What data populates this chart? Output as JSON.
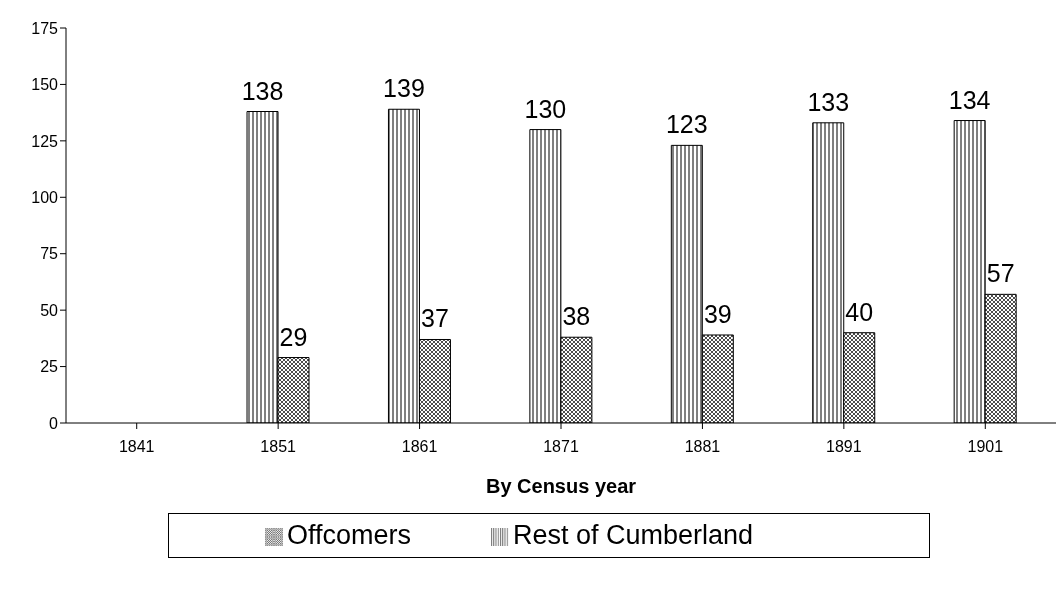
{
  "chart_data": {
    "type": "bar",
    "xlabel": "By Census year",
    "categories": [
      "1841",
      "1851",
      "1861",
      "1871",
      "1881",
      "1891",
      "1901"
    ],
    "series": [
      {
        "name": "Rest of Cumberland",
        "color": "#000000",
        "values": [
          null,
          138,
          139,
          130,
          123,
          133,
          134
        ]
      },
      {
        "name": "Offcomers",
        "color": "#000000",
        "values": [
          null,
          29,
          37,
          38,
          39,
          40,
          57
        ]
      }
    ],
    "ylim": [
      0,
      175
    ],
    "yticks": [
      0,
      25,
      50,
      75,
      100,
      125,
      150,
      175
    ],
    "grid": false,
    "legend": "bottom",
    "data_labels": true
  }
}
